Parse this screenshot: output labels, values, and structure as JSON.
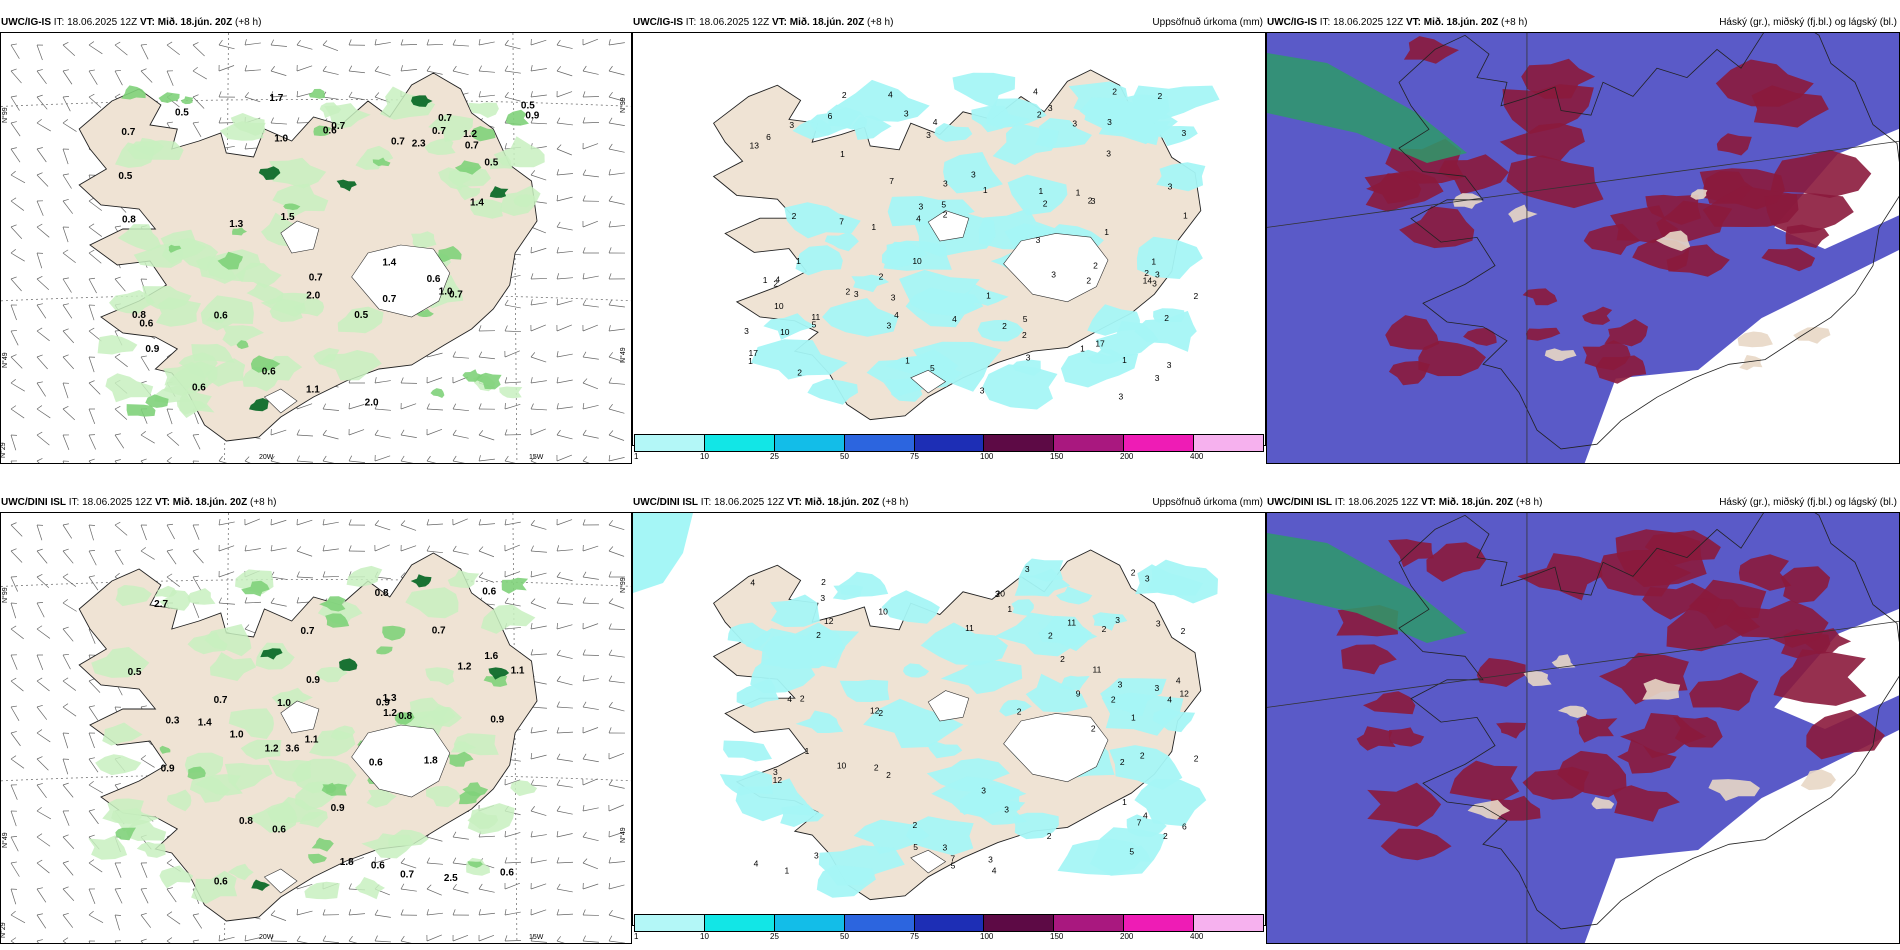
{
  "run_info": "IT: 18.06.2025 12Z",
  "valid_time": "VT: Mið. 18.jún. 20Z",
  "lead": "(+8 h)",
  "colors": {
    "land": "#efe3d4",
    "sea": "#ffffff",
    "precip_light": "#c8f0c0",
    "precip_mid": "#7fd27a",
    "precip_heavy": "#0d6b2a",
    "accum": "#a5f6f6",
    "cloud_high": "#8b1a3c",
    "cloud_low": "#5a5ac8",
    "cloud_mid": "#2e9a6a"
  },
  "rows": [
    {
      "model": "UWC/IG-IS",
      "wind_panel": {
        "axis_lat": [
          "N°99",
          "N°99",
          "N°49",
          "N°49",
          "N°29"
        ],
        "axis_lon": [
          "20W",
          "15W"
        ],
        "labels": [
          "1.0",
          "0.7",
          "1.0",
          "0.6",
          "0.6",
          "1.4",
          "2.0",
          "0.7",
          "0.5",
          "0.7",
          "0.7",
          "0.7",
          "1.3",
          "0.6",
          "1.7",
          "0.7",
          "0.6",
          "0.8",
          "0.7",
          "1.1",
          "0.5",
          "2.3",
          "0.5",
          "0.8",
          "0.7",
          "0.5",
          "0.9",
          "0.6",
          "0.6",
          "1.5",
          "0.9",
          "2.0",
          "0.5",
          "1.2",
          "0.7",
          "1.4"
        ]
      },
      "accum_panel": {
        "title": "Uppsöfnuð úrkoma (mm)",
        "labels": [
          "2",
          "3",
          "1",
          "3",
          "2",
          "2",
          "3",
          "1",
          "3",
          "3",
          "2",
          "3",
          "4",
          "6",
          "11",
          "7",
          "13",
          "4",
          "2",
          "3",
          "3",
          "5",
          "4",
          "5",
          "1",
          "2",
          "3",
          "4",
          "2",
          "14",
          "10",
          "17",
          "10",
          "17",
          "1",
          "3",
          "5",
          "3",
          "1",
          "2",
          "2",
          "1",
          "3",
          "1",
          "6",
          "10",
          "4",
          "3",
          "2",
          "3",
          "1",
          "1",
          "2",
          "2",
          "4",
          "2",
          "2",
          "3",
          "3",
          "4",
          "3",
          "3",
          "5",
          "2",
          "1",
          "3",
          "1",
          "2",
          "3",
          "3",
          "7",
          "3",
          "1",
          "1",
          "1",
          "3",
          "2",
          "3",
          "1",
          "2",
          "3",
          "3",
          "2"
        ],
        "colorbar_ticks": [
          "1",
          "10",
          "25",
          "50",
          "75",
          "100",
          "150",
          "200",
          "400"
        ]
      },
      "cloud_panel": {
        "title": "Háský (gr.), miðský (fj.bl.) og lágský (bl.)"
      }
    },
    {
      "model": "UWC/DINI ISL",
      "wind_panel": {
        "axis_lat": [
          "N°99",
          "N°99",
          "N°49",
          "N°49",
          "N°29"
        ],
        "axis_lon": [
          "20W",
          "15W"
        ],
        "labels": [
          "0.9",
          "0.6",
          "1.2",
          "0.6",
          "0.7",
          "2.7",
          "1.8",
          "0.9",
          "0.6",
          "3.6",
          "2.5",
          "1.4",
          "1.2",
          "1.0",
          "0.6",
          "0.3",
          "1.3",
          "0.6",
          "0.9",
          "1.6",
          "1.1",
          "0.8",
          "0.9",
          "0.8",
          "0.6",
          "0.7",
          "1.8",
          "0.7",
          "0.9",
          "0.8",
          "1.1",
          "0.7",
          "1.0",
          "0.5",
          "1.2"
        ]
      },
      "accum_panel": {
        "title": "Uppsöfnuð úrkoma (mm)",
        "labels": [
          "1",
          "2",
          "3",
          "2",
          "2",
          "4",
          "2",
          "3",
          "3",
          "2",
          "2",
          "2",
          "2",
          "3",
          "10",
          "12",
          "5",
          "4",
          "11",
          "4",
          "2",
          "1",
          "3",
          "3",
          "4",
          "20",
          "10",
          "12",
          "3",
          "3",
          "4",
          "7",
          "11",
          "9",
          "12",
          "2",
          "3",
          "2",
          "2",
          "2",
          "2",
          "4",
          "1",
          "11",
          "7",
          "12",
          "2",
          "4",
          "3",
          "1",
          "3",
          "2",
          "3",
          "5",
          "2",
          "6",
          "2",
          "3",
          "2",
          "1",
          "2",
          "3",
          "5"
        ],
        "colorbar_ticks": [
          "1",
          "10",
          "25",
          "50",
          "75",
          "100",
          "150",
          "200",
          "400"
        ]
      },
      "cloud_panel": {
        "title": "Háský (gr.), miðský (fj.bl.) og lágský (bl.)"
      }
    }
  ]
}
